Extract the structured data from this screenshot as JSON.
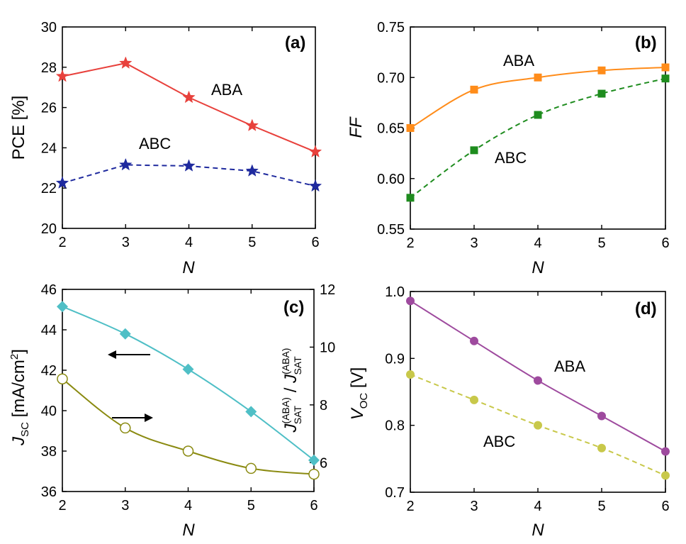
{
  "chart_data": [
    {
      "panel": "(a)",
      "type": "line",
      "xlabel": "N",
      "ylabel": "PCE [%]",
      "xlim": [
        2,
        6
      ],
      "ylim": [
        20,
        30
      ],
      "xticks": [
        2,
        3,
        4,
        5,
        6
      ],
      "yticks": [
        20,
        22,
        24,
        26,
        28,
        30
      ],
      "annotations": [
        "ABA",
        "ABC"
      ],
      "series": [
        {
          "name": "ABA",
          "color": "#e8413c",
          "marker": "star",
          "style": "solid",
          "x": [
            2,
            3,
            4,
            5,
            6
          ],
          "values": [
            27.55,
            28.2,
            26.5,
            25.1,
            23.8
          ]
        },
        {
          "name": "ABC",
          "color": "#1f2a9e",
          "marker": "star",
          "style": "dashed",
          "x": [
            2,
            3,
            4,
            5,
            6
          ],
          "values": [
            22.25,
            23.15,
            23.1,
            22.85,
            22.1
          ]
        }
      ]
    },
    {
      "panel": "(b)",
      "type": "line",
      "xlabel": "N",
      "ylabel": "FF",
      "xlim": [
        2,
        6
      ],
      "ylim": [
        0.55,
        0.75
      ],
      "xticks": [
        2,
        3,
        4,
        5,
        6
      ],
      "yticks": [
        "0.55",
        "0.60",
        "0.65",
        "0.70",
        "0.75"
      ],
      "annotations": [
        "ABA",
        "ABC"
      ],
      "series": [
        {
          "name": "ABA",
          "color": "#ff8c1a",
          "marker": "square",
          "style": "solid",
          "x": [
            2,
            3,
            4,
            5,
            6
          ],
          "values": [
            0.65,
            0.688,
            0.7,
            0.707,
            0.71
          ]
        },
        {
          "name": "ABC",
          "color": "#1e8c1e",
          "marker": "square",
          "style": "dashed",
          "x": [
            2,
            3,
            4,
            5,
            6
          ],
          "values": [
            0.581,
            0.628,
            0.663,
            0.684,
            0.699
          ]
        }
      ]
    },
    {
      "panel": "(c)",
      "type": "line",
      "xlabel": "N",
      "ylabel_left": {
        "main": "J",
        "sub": "SC",
        "rest": " [mA/cm",
        "sup": "2",
        "end": "]"
      },
      "ylabel_right": {
        "j1": "J",
        "sup1": "(ABA)",
        "sub1": "SAT",
        "slash": " / ",
        "j2": "J",
        "sup2": "(ABA)",
        "sub2": "SAT"
      },
      "xlim": [
        2,
        6
      ],
      "ylim_left": [
        36,
        46
      ],
      "ylim_right": [
        5,
        12
      ],
      "xticks": [
        2,
        3,
        4,
        5,
        6
      ],
      "yticks_left": [
        36,
        38,
        40,
        42,
        44,
        46
      ],
      "yticks_right": [
        6,
        8,
        10,
        12
      ],
      "series": [
        {
          "name": "JSC",
          "axis": "left",
          "color": "#4fbfc6",
          "marker": "diamond",
          "style": "solid",
          "x": [
            2,
            3,
            4,
            5,
            6
          ],
          "values": [
            45.15,
            43.8,
            42.05,
            39.95,
            37.55
          ]
        },
        {
          "name": "JSAT ratio",
          "axis": "right",
          "color": "#8a8a10",
          "marker": "open-circle",
          "style": "solid",
          "x": [
            2,
            3,
            4,
            5,
            6
          ],
          "values": [
            8.9,
            7.2,
            6.4,
            5.8,
            5.6
          ]
        }
      ],
      "arrows": [
        {
          "direction": "left",
          "axis": "left"
        },
        {
          "direction": "right",
          "axis": "right"
        }
      ]
    },
    {
      "panel": "(d)",
      "type": "line",
      "xlabel": "N",
      "ylabel": {
        "main": "V",
        "sub": "OC",
        "rest": " [V]"
      },
      "xlim": [
        2,
        6
      ],
      "ylim": [
        0.7,
        1.0
      ],
      "xticks": [
        2,
        3,
        4,
        5,
        6
      ],
      "yticks": [
        "0.7",
        "0.8",
        "0.9",
        "1.0"
      ],
      "annotations": [
        "ABA",
        "ABC"
      ],
      "series": [
        {
          "name": "ABA",
          "color": "#9e4a9e",
          "marker": "circle",
          "style": "solid",
          "x": [
            2,
            3,
            4,
            5,
            6
          ],
          "values": [
            0.986,
            0.926,
            0.867,
            0.814,
            0.761
          ]
        },
        {
          "name": "ABC",
          "color": "#c8c84a",
          "marker": "circle",
          "style": "dashed",
          "x": [
            2,
            3,
            4,
            5,
            6
          ],
          "values": [
            0.876,
            0.838,
            0.8,
            0.766,
            0.725
          ]
        }
      ]
    }
  ]
}
